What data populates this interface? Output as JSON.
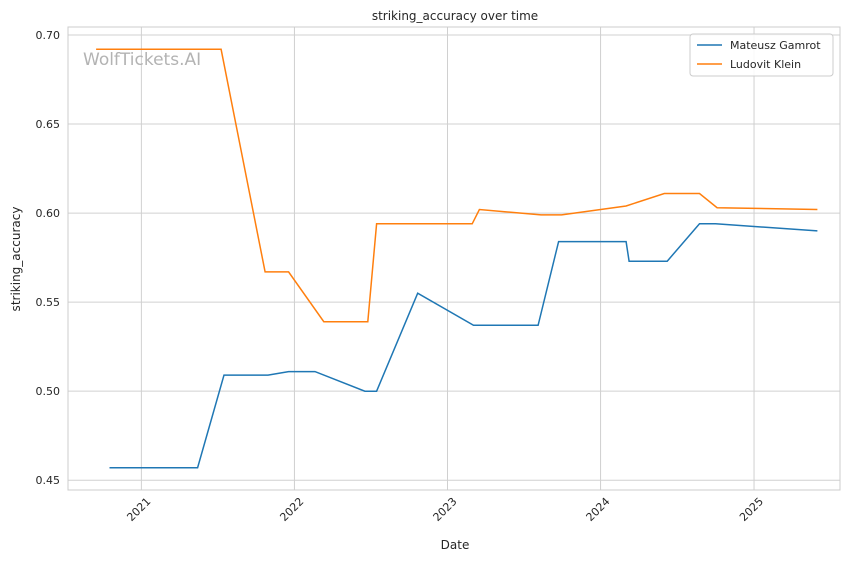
{
  "chart_data": {
    "type": "line",
    "title": "striking_accuracy over time",
    "xlabel": "Date",
    "ylabel": "striking_accuracy",
    "xlim": [
      "2020-07-10",
      "2025-07-25"
    ],
    "ylim": [
      0.4445,
      0.7045
    ],
    "x_ticks": [
      "2021",
      "2022",
      "2023",
      "2024",
      "2025"
    ],
    "y_ticks": [
      "0.45",
      "0.50",
      "0.55",
      "0.60",
      "0.65",
      "0.70"
    ],
    "grid": true,
    "legend_position": "top-right",
    "watermark": "WolfTickets.AI",
    "series": [
      {
        "name": "Mateusz Gamrot",
        "color": "#1f77b4",
        "points": [
          [
            "2020-10-17",
            0.457
          ],
          [
            "2021-05-15",
            0.457
          ],
          [
            "2021-07-17",
            0.509
          ],
          [
            "2021-10-30",
            0.509
          ],
          [
            "2021-12-18",
            0.511
          ],
          [
            "2022-02-19",
            0.511
          ],
          [
            "2022-06-18",
            0.5
          ],
          [
            "2022-07-16",
            0.5
          ],
          [
            "2022-10-22",
            0.555
          ],
          [
            "2023-03-04",
            0.537
          ],
          [
            "2023-08-05",
            0.537
          ],
          [
            "2023-09-23",
            0.584
          ],
          [
            "2024-03-02",
            0.584
          ],
          [
            "2024-03-09",
            0.573
          ],
          [
            "2024-06-08",
            0.573
          ],
          [
            "2024-08-24",
            0.594
          ],
          [
            "2024-10-01",
            0.594
          ],
          [
            "2025-06-01",
            0.59
          ]
        ]
      },
      {
        "name": "Ludovit Klein",
        "color": "#ff7f0e",
        "points": [
          [
            "2020-09-15",
            0.692
          ],
          [
            "2021-07-10",
            0.692
          ],
          [
            "2021-10-23",
            0.567
          ],
          [
            "2021-12-18",
            0.567
          ],
          [
            "2022-03-12",
            0.539
          ],
          [
            "2022-06-25",
            0.539
          ],
          [
            "2022-07-16",
            0.594
          ],
          [
            "2023-03-01",
            0.594
          ],
          [
            "2023-03-18",
            0.602
          ],
          [
            "2023-08-12",
            0.599
          ],
          [
            "2023-09-30",
            0.599
          ],
          [
            "2024-03-02",
            0.604
          ],
          [
            "2024-06-01",
            0.611
          ],
          [
            "2024-08-24",
            0.611
          ],
          [
            "2024-10-05",
            0.603
          ],
          [
            "2025-06-01",
            0.602
          ]
        ]
      }
    ]
  }
}
